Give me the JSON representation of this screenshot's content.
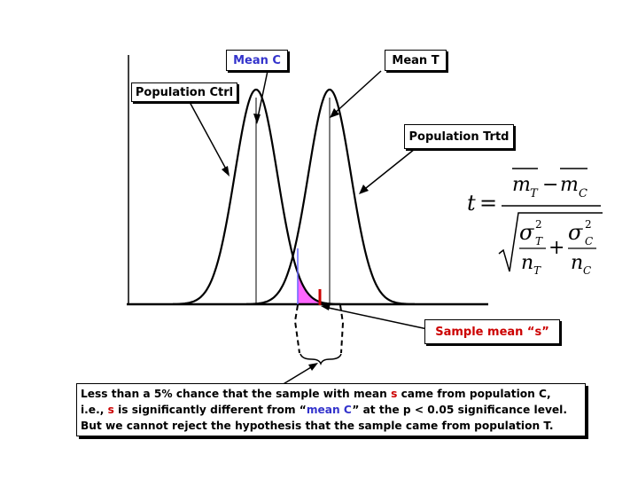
{
  "labels": {
    "mean_c": "Mean C",
    "mean_t": "Mean T",
    "population_ctrl": "Population Ctrl",
    "population_trtd": "Population Trtd",
    "sample_mean": "Sample mean “s”"
  },
  "formula": {
    "lhs": "t",
    "equals": "=",
    "num_t": "m",
    "num_t_sub": "T",
    "minus": "−",
    "num_c": "m",
    "num_c_sub": "C",
    "sigma": "σ",
    "sub_t": "T",
    "sub_c": "C",
    "sup": "2",
    "plus": "+",
    "n": "n"
  },
  "note": {
    "line1_a": "Less than a 5% chance that the sample with mean ",
    "line1_s": "s",
    "line1_b": " came from population C,",
    "line2_a": "i.e., ",
    "line2_s": "s",
    "line2_b": " is significantly different from “",
    "line2_mean": "mean C",
    "line2_c": "” at the p < 0.05 significance level.",
    "line3": "But we cannot reject the hypothesis that the sample came from population T."
  },
  "colors": {
    "curve": "#000000",
    "blue_label": "#3333cc",
    "red_label": "#cc0000",
    "rejection_fill": "#ff66ff",
    "rejection_overlap": "#8888ff",
    "sample_marker": "#cc0000"
  }
}
